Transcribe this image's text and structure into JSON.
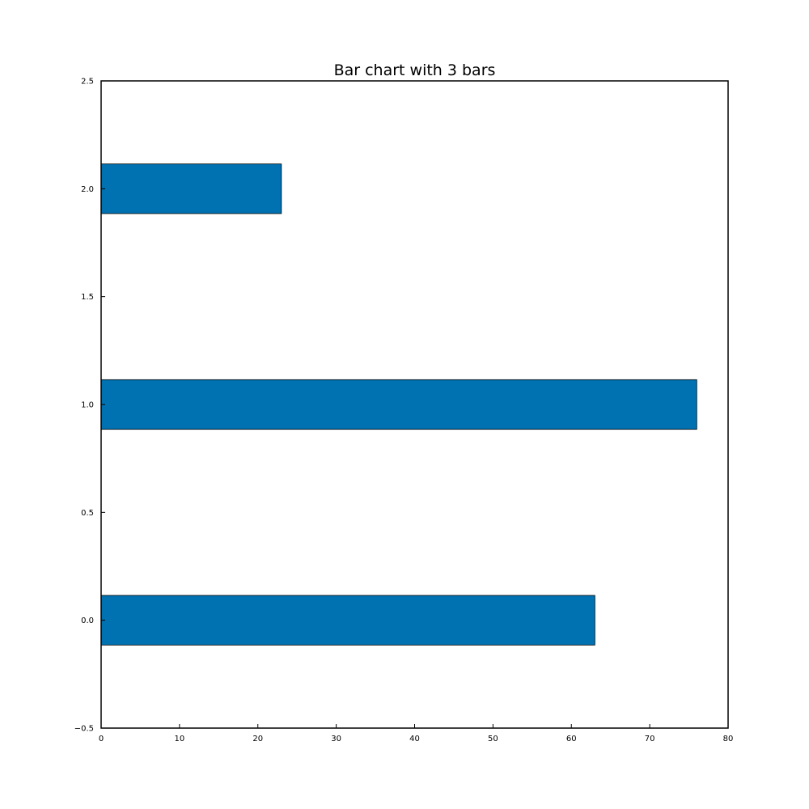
{
  "chart_data": {
    "type": "bar",
    "orientation": "horizontal",
    "title": "Bar chart with 3 bars",
    "xlabel": "",
    "ylabel": "",
    "categories": [
      0,
      1,
      2
    ],
    "values": [
      63,
      76,
      23
    ],
    "xlim": [
      0,
      80
    ],
    "ylim": [
      -0.5,
      2.5
    ],
    "xticks": [
      0,
      10,
      20,
      30,
      40,
      50,
      60,
      70,
      80
    ],
    "xtick_labels": [
      "0",
      "10",
      "20",
      "30",
      "40",
      "50",
      "60",
      "70",
      "80"
    ],
    "yticks": [
      -0.5,
      0.0,
      0.5,
      1.0,
      1.5,
      2.0,
      2.5
    ],
    "ytick_labels": [
      "−0.5",
      "0.0",
      "0.5",
      "1.0",
      "1.5",
      "2.0",
      "2.5"
    ],
    "bar_height": 0.23,
    "grid": false,
    "legend": "none",
    "bar_color": "#0072b2",
    "edge_color": "#000000"
  }
}
